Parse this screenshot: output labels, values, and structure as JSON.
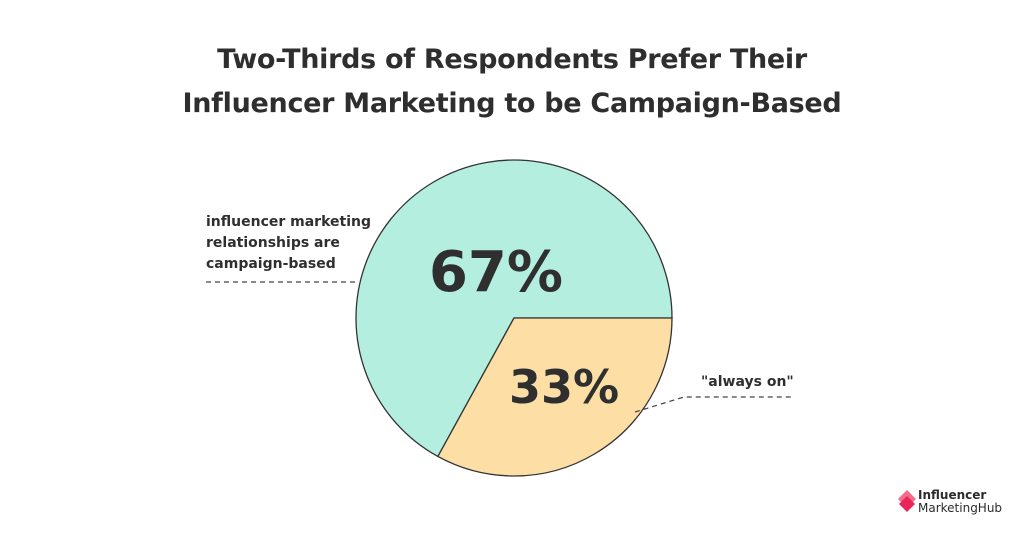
{
  "chart_data": {
    "type": "pie",
    "title_lines": [
      "Two-Thirds of Respondents Prefer Their",
      "Influencer Marketing to be Campaign-Based"
    ],
    "slices": [
      {
        "label_lines": [
          "influencer marketing",
          "relationships are",
          "campaign-based"
        ],
        "value": 67,
        "display": "67%",
        "color": "#b3eedf"
      },
      {
        "label": "\"always on\"",
        "value": 33,
        "display": "33%",
        "color": "#fddfa6"
      }
    ],
    "outline_color": "#333333"
  },
  "brand": {
    "line1": "Influencer",
    "line2": "MarketingHub",
    "icon": "diamond-logo-icon",
    "colors": [
      "#e8265a",
      "#f46c8c"
    ]
  }
}
